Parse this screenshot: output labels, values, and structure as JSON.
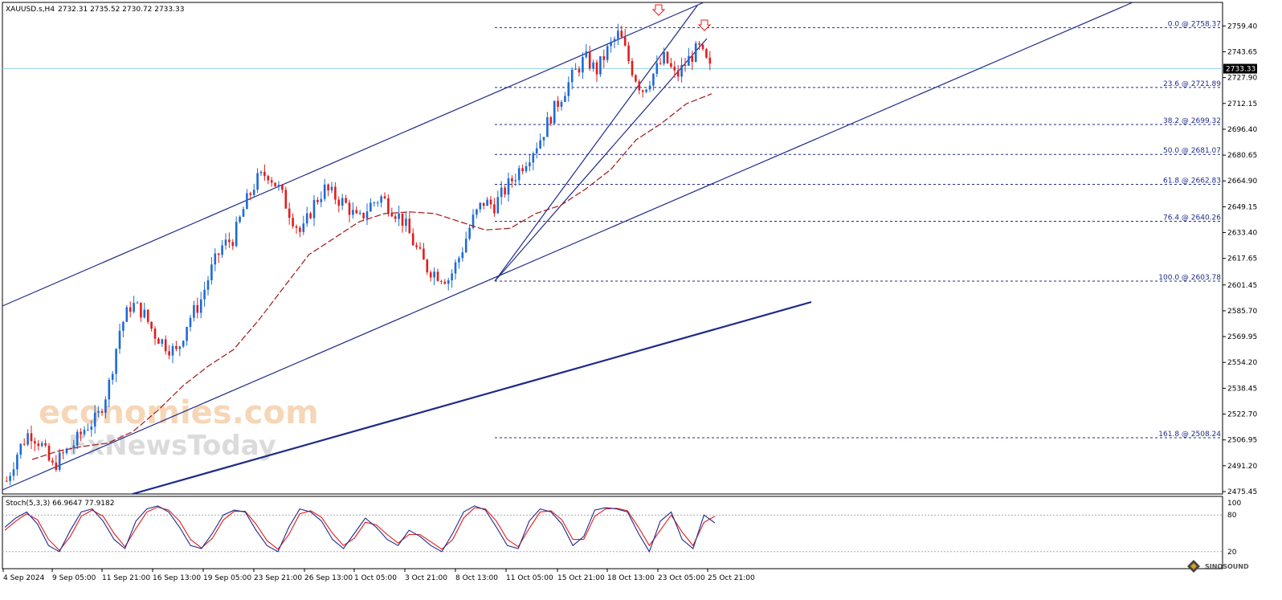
{
  "header": {
    "symbol": "XAUUSD.s,H4",
    "ohlc": "2732.31 2735.52 2730.72 2733.33"
  },
  "watermark": {
    "line1": "economies.com",
    "line2": "FxNewsToday"
  },
  "logo_text": "SINOSOUND",
  "current_price": "2733.33",
  "colors": {
    "bull": "#1e6ad6",
    "bear": "#e41b1b",
    "channel": "#1f2a8a",
    "fib": "#1f2a8a",
    "ma": "#a31515",
    "stoch_main": "#1f2a8a",
    "stoch_signal": "#e41b1b",
    "price_line": "#9bd4e6"
  },
  "price_axis": {
    "ticks": [
      "2759.40",
      "2743.65",
      "2727.90",
      "2712.15",
      "2696.40",
      "2680.65",
      "2664.90",
      "2649.15",
      "2633.40",
      "2617.65",
      "2601.45",
      "2585.70",
      "2569.95",
      "2554.20",
      "2538.45",
      "2522.70",
      "2506.95",
      "2491.20",
      "2475.45"
    ]
  },
  "time_axis": {
    "labels": [
      "4 Sep 2024",
      "9 Sep 05:00",
      "11 Sep 21:00",
      "16 Sep 13:00",
      "19 Sep 05:00",
      "23 Sep 21:00",
      "26 Sep 13:00",
      "1 Oct 05:00",
      "3 Oct 21:00",
      "8 Oct 13:00",
      "11 Oct 05:00",
      "15 Oct 21:00",
      "18 Oct 13:00",
      "23 Oct 05:00",
      "25 Oct 21:00"
    ]
  },
  "fib_levels": [
    {
      "label": "0.0 @ 2758.37",
      "value": 2758.37
    },
    {
      "label": "23.6 @ 2721.89",
      "value": 2721.89
    },
    {
      "label": "38.2 @ 2699.32",
      "value": 2699.32
    },
    {
      "label": "50.0 @ 2681.07",
      "value": 2681.07
    },
    {
      "label": "61.8 @ 2662.83",
      "value": 2662.83
    },
    {
      "label": "76.4 @ 2640.26",
      "value": 2640.26
    },
    {
      "label": "100.0 @ 2603.78",
      "value": 2603.78
    },
    {
      "label": "161.8 @ 2508.24",
      "value": 2508.24
    }
  ],
  "stochastic": {
    "label": "Stoch(5,3,3) 66.9647 77.9182",
    "levels": [
      "100",
      "80",
      "20",
      "0"
    ]
  },
  "chart_data": {
    "type": "candlestick",
    "title": "XAUUSD.s,H4",
    "symbol": "XAUUSD.s",
    "timeframe": "H4",
    "last_bar": {
      "open": 2732.31,
      "high": 2735.52,
      "low": 2730.72,
      "close": 2733.33
    },
    "ylim": [
      2475.45,
      2766
    ],
    "x": [
      "4 Sep 2024",
      "9 Sep 05:00",
      "11 Sep 21:00",
      "16 Sep 13:00",
      "19 Sep 05:00",
      "23 Sep 21:00",
      "26 Sep 13:00",
      "1 Oct 05:00",
      "3 Oct 21:00",
      "8 Oct 13:00",
      "11 Oct 05:00",
      "15 Oct 21:00",
      "18 Oct 13:00",
      "23 Oct 05:00",
      "25 Oct 21:00"
    ],
    "close_path": [
      2482,
      2500,
      2512,
      2505,
      2490,
      2498,
      2505,
      2515,
      2520,
      2540,
      2575,
      2590,
      2585,
      2572,
      2565,
      2560,
      2580,
      2590,
      2610,
      2625,
      2630,
      2650,
      2665,
      2670,
      2660,
      2645,
      2632,
      2650,
      2660,
      2655,
      2650,
      2640,
      2650,
      2655,
      2648,
      2640,
      2625,
      2612,
      2608,
      2605,
      2620,
      2640,
      2652,
      2650,
      2660,
      2670,
      2680,
      2690,
      2705,
      2718,
      2730,
      2740,
      2732,
      2745,
      2755,
      2735,
      2720,
      2730,
      2740,
      2728,
      2738,
      2746,
      2733
    ],
    "moving_average": [
      2495,
      2500,
      2503,
      2505,
      2512,
      2525,
      2540,
      2552,
      2562,
      2580,
      2600,
      2620,
      2630,
      2640,
      2645,
      2646,
      2645,
      2640,
      2635,
      2636,
      2645,
      2650,
      2660,
      2672,
      2690,
      2700,
      2712,
      2718
    ],
    "fibonacci": [
      {
        "level": "0.0",
        "price": 2758.37
      },
      {
        "level": "23.6",
        "price": 2721.89
      },
      {
        "level": "38.2",
        "price": 2699.32
      },
      {
        "level": "50.0",
        "price": 2681.07
      },
      {
        "level": "61.8",
        "price": 2662.83
      },
      {
        "level": "76.4",
        "price": 2640.26
      },
      {
        "level": "100.0",
        "price": 2603.78
      },
      {
        "level": "161.8",
        "price": 2508.24
      }
    ],
    "stochastic": {
      "params": "5,3,3",
      "main": 66.9647,
      "signal": 77.9182,
      "ylim": [
        0,
        100
      ],
      "levels": [
        20,
        80
      ],
      "main_series": [
        60,
        75,
        85,
        65,
        30,
        20,
        55,
        85,
        90,
        70,
        40,
        25,
        70,
        90,
        95,
        85,
        60,
        30,
        25,
        50,
        80,
        88,
        85,
        55,
        30,
        20,
        60,
        90,
        85,
        70,
        40,
        25,
        50,
        75,
        60,
        40,
        30,
        55,
        45,
        30,
        20,
        50,
        85,
        95,
        88,
        60,
        30,
        25,
        70,
        90,
        85,
        65,
        30,
        45,
        88,
        92,
        90,
        85,
        50,
        20,
        70,
        85,
        40,
        25,
        80,
        67
      ],
      "signal_series": [
        55,
        70,
        82,
        72,
        40,
        22,
        45,
        78,
        88,
        78,
        50,
        28,
        58,
        85,
        93,
        88,
        70,
        40,
        26,
        42,
        72,
        86,
        86,
        65,
        38,
        24,
        48,
        82,
        87,
        76,
        50,
        30,
        42,
        68,
        64,
        48,
        34,
        48,
        48,
        36,
        24,
        40,
        75,
        92,
        90,
        70,
        40,
        28,
        58,
        85,
        87,
        72,
        40,
        40,
        78,
        90,
        91,
        87,
        60,
        30,
        55,
        80,
        52,
        30,
        68,
        78
      ]
    }
  }
}
